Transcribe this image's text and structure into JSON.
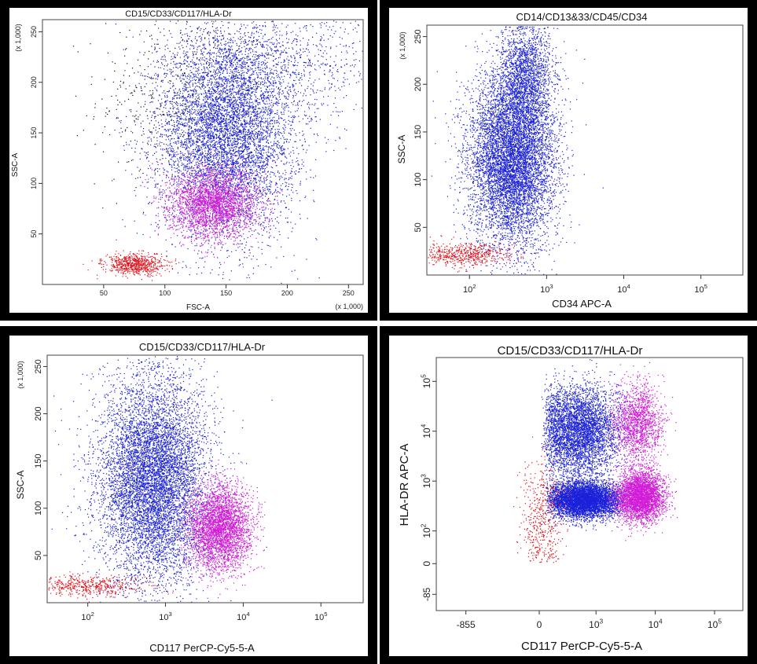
{
  "colors": {
    "frame": "#000000",
    "background": "#ffffff",
    "pop_blue": "#1b22d8",
    "pop_magenta": "#d21bd8",
    "pop_red": "#e0141c",
    "pop_black": "#111111"
  },
  "chart_data": [
    {
      "type": "scatter",
      "title": "CD15/CD33/CD117/HLA-Dr",
      "xlabel": "FSC-A",
      "ylabel": "SSC-A",
      "x_scale": "linear",
      "y_scale": "linear",
      "x_multiplier_label": "(x 1,000)",
      "y_multiplier_label": "(x 1,000)",
      "xlim": [
        0,
        262
      ],
      "ylim": [
        0,
        262
      ],
      "x_ticks": [
        "50",
        "100",
        "150",
        "200",
        "250"
      ],
      "y_ticks": [
        "50",
        "100",
        "150",
        "200",
        "250"
      ],
      "grid": false,
      "series": [
        {
          "color": "pop_black",
          "clusters": [
            {
              "cx": 115,
              "cy": 185,
              "sx": 35,
              "sy": 45,
              "n": 600
            }
          ]
        },
        {
          "color": "pop_blue",
          "clusters": [
            {
              "cx": 150,
              "cy": 150,
              "sx": 28,
              "sy": 50,
              "n": 6500
            },
            {
              "cx": 200,
              "cy": 220,
              "sx": 40,
              "sy": 30,
              "n": 900
            }
          ]
        },
        {
          "color": "pop_magenta",
          "clusters": [
            {
              "cx": 140,
              "cy": 80,
              "sx": 18,
              "sy": 17,
              "n": 2600
            }
          ]
        },
        {
          "color": "pop_red",
          "clusters": [
            {
              "cx": 75,
              "cy": 20,
              "sx": 12,
              "sy": 5,
              "n": 700
            }
          ]
        }
      ]
    },
    {
      "type": "scatter",
      "title": "CD14/CD13&33/CD45/CD34",
      "xlabel": "CD34 APC-A",
      "ylabel": "SSC-A",
      "x_scale": "log",
      "y_scale": "linear",
      "y_multiplier_label": "(x 1,000)",
      "xlim": [
        28,
        350000
      ],
      "ylim": [
        0,
        262
      ],
      "x_ticks": [
        "10^2",
        "10^3",
        "10^4",
        "10^5"
      ],
      "y_ticks": [
        "50",
        "100",
        "150",
        "200",
        "250"
      ],
      "grid": false,
      "series": [
        {
          "color": "pop_blue",
          "clusters": [
            {
              "cx": 350,
              "cy": 120,
              "sxlog": 0.28,
              "sy": 45,
              "n": 7500
            },
            {
              "cx": 520,
              "cy": 210,
              "sxlog": 0.18,
              "sy": 30,
              "n": 2000
            }
          ]
        },
        {
          "color": "pop_red",
          "clusters": [
            {
              "cx": 80,
              "cy": 22,
              "sxlog": 0.3,
              "sy": 6,
              "n": 600
            }
          ]
        }
      ]
    },
    {
      "type": "scatter",
      "title": "CD15/CD33/CD117/HLA-Dr",
      "xlabel": "CD117 PerCP-Cy5-5-A",
      "ylabel": "SSC-A",
      "x_scale": "log",
      "y_scale": "linear",
      "y_multiplier_label": "(x 1,000)",
      "xlim": [
        30,
        350000
      ],
      "ylim": [
        0,
        262
      ],
      "x_ticks": [
        "10^2",
        "10^3",
        "10^4",
        "10^5"
      ],
      "y_ticks": [
        "50",
        "100",
        "150",
        "200",
        "250"
      ],
      "grid": false,
      "series": [
        {
          "color": "pop_blue",
          "clusters": [
            {
              "cx": 700,
              "cy": 130,
              "sxlog": 0.35,
              "sy": 55,
              "n": 8000
            }
          ]
        },
        {
          "color": "pop_magenta",
          "clusters": [
            {
              "cx": 5000,
              "cy": 80,
              "sxlog": 0.2,
              "sy": 22,
              "n": 3500
            }
          ]
        },
        {
          "color": "pop_red",
          "clusters": [
            {
              "cx": 100,
              "cy": 18,
              "sxlog": 0.35,
              "sy": 5,
              "n": 500
            }
          ]
        }
      ]
    },
    {
      "type": "scatter",
      "title": "CD15/CD33/CD117/HLA-Dr",
      "xlabel": "CD117 PerCP-Cy5-5-A",
      "ylabel": "HLA-DR APC-A",
      "x_scale": "biexponential",
      "y_scale": "biexponential",
      "x_ticks": [
        "-855",
        "0",
        "10^3",
        "10^4",
        "10^5"
      ],
      "y_ticks": [
        "-85",
        "0",
        "10^2",
        "10^3",
        "10^4",
        "10^5"
      ],
      "grid": false,
      "series": [
        {
          "color": "pop_blue",
          "clusters": [
            {
              "cx": 620,
              "cy": 420,
              "sxlog": 0.3,
              "sylog": 0.18,
              "n": 5500
            },
            {
              "cx": 500,
              "cy": 10000,
              "sxlog": 0.35,
              "sylog": 0.45,
              "n": 4500
            }
          ]
        },
        {
          "color": "pop_magenta",
          "clusters": [
            {
              "cx": 5500,
              "cy": 500,
              "sxlog": 0.2,
              "sylog": 0.25,
              "n": 3500
            },
            {
              "cx": 5000,
              "cy": 15000,
              "sxlog": 0.2,
              "sylog": 0.4,
              "n": 1500
            }
          ]
        },
        {
          "color": "pop_red",
          "clusters": [
            {
              "cx": 20,
              "cy": 200,
              "sxlog": 0.2,
              "sylog": 0.6,
              "n": 500
            }
          ]
        }
      ]
    }
  ]
}
